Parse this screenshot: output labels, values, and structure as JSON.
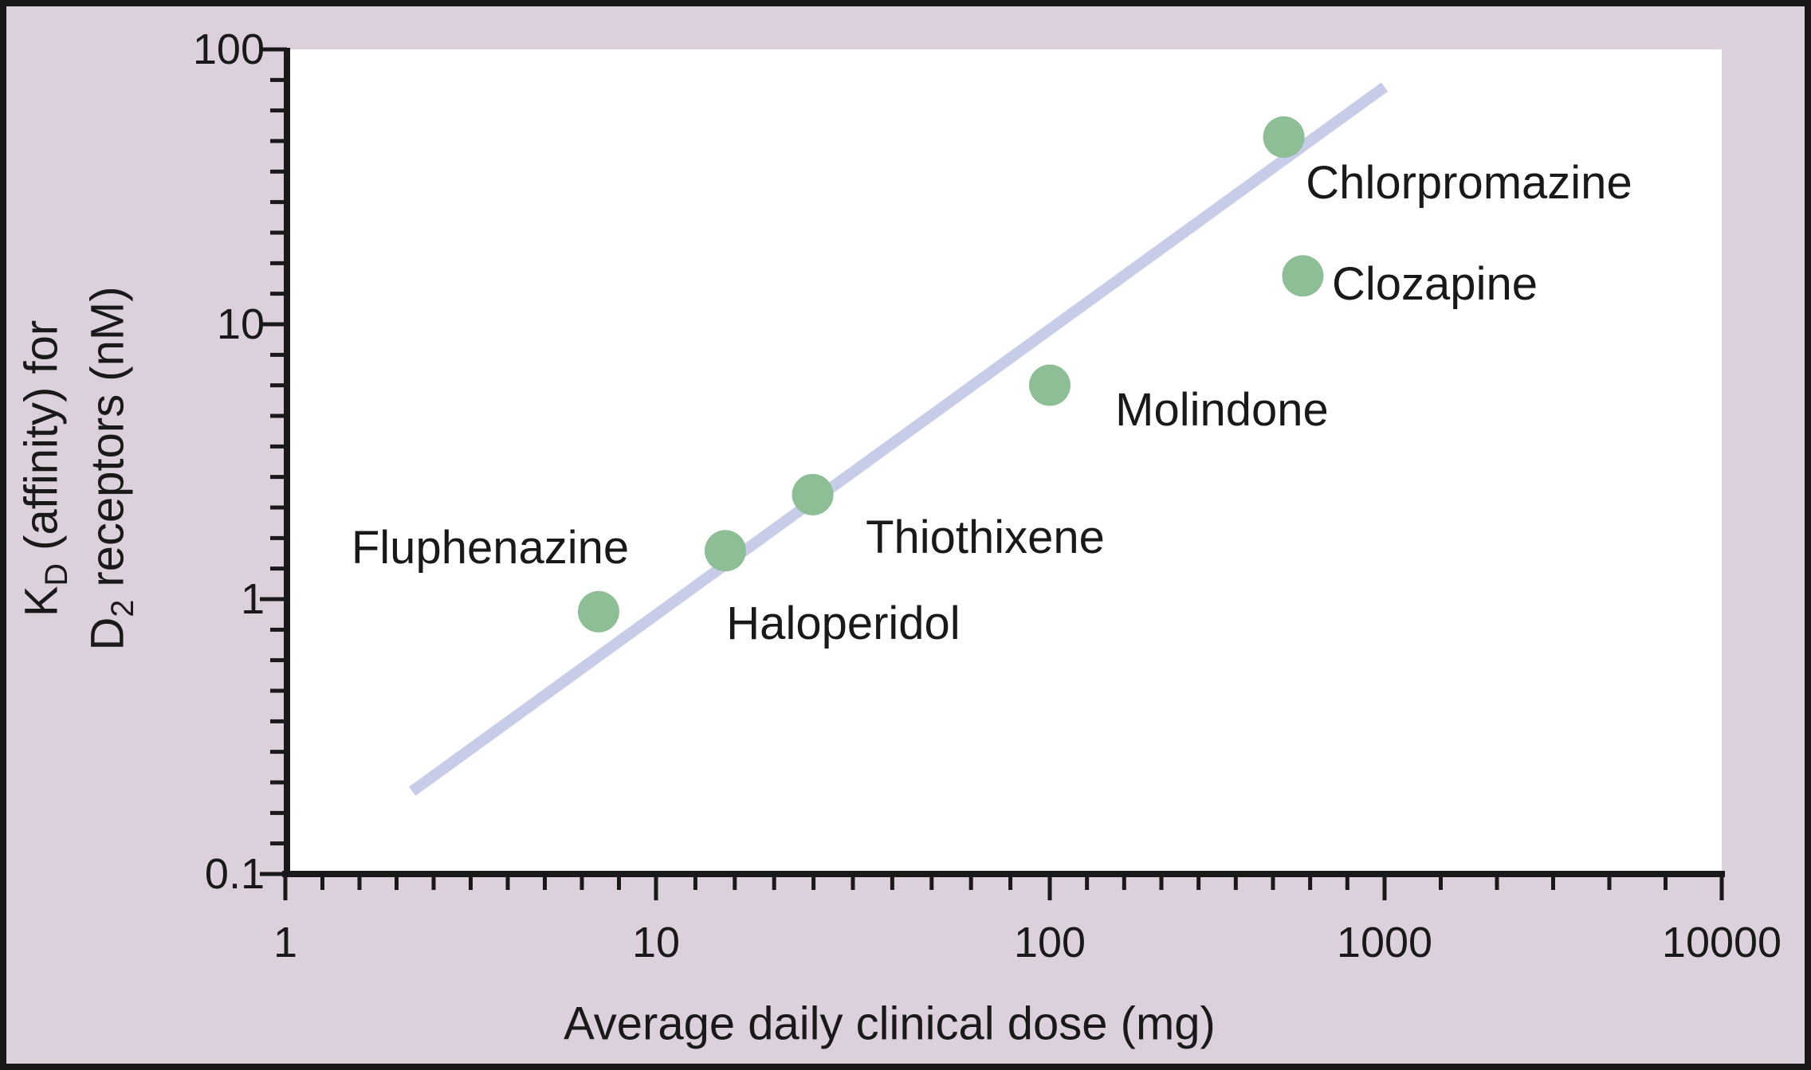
{
  "axes": {
    "x": {
      "title": "Average daily clinical dose (mg)",
      "tick_labels": [
        "1",
        "10",
        "100",
        "1000",
        "10000"
      ]
    },
    "y": {
      "title_line1": {
        "pre": "K",
        "sub": "D",
        "post": " (affinity) for"
      },
      "title_line2": {
        "pre": "D",
        "sub": "2",
        "post": " receptors (nM)"
      },
      "tick_labels": [
        "100",
        "10",
        "1",
        "0.1"
      ]
    }
  },
  "chart_data": {
    "type": "scatter",
    "title": "",
    "xlabel": "Average daily clinical dose (mg)",
    "ylabel": "KD (affinity) for D2 receptors (nM)",
    "x_scale": "log",
    "y_scale": "log",
    "xlim": [
      1,
      10000
    ],
    "ylim": [
      0.1,
      100
    ],
    "x_ticks": [
      1,
      10,
      100,
      1000,
      10000
    ],
    "y_ticks": [
      0.1,
      1,
      10,
      100
    ],
    "grid": false,
    "legend": false,
    "points": [
      {
        "name": "Fluphenazine",
        "dose_mg": 7,
        "kd_nm": 0.9
      },
      {
        "name": "Haloperidol",
        "dose_mg": 15,
        "kd_nm": 1.5
      },
      {
        "name": "Thiothixene",
        "dose_mg": 25,
        "kd_nm": 2.4
      },
      {
        "name": "Molindone",
        "dose_mg": 100,
        "kd_nm": 6
      },
      {
        "name": "Chlorpromazine",
        "dose_mg": 500,
        "kd_nm": 48
      },
      {
        "name": "Clozapine",
        "dose_mg": 570,
        "kd_nm": 15
      }
    ],
    "trend_line": {
      "dose_start": 2.2,
      "kd_start": 0.2,
      "dose_end": 1000,
      "kd_end": 73
    },
    "colors": {
      "point_fill": "#8dbe96",
      "trend_line": "#c7cde9",
      "background": "#dcd0dc",
      "plot_background": "#ffffff",
      "axis": "#191919",
      "text": "#191919"
    }
  }
}
